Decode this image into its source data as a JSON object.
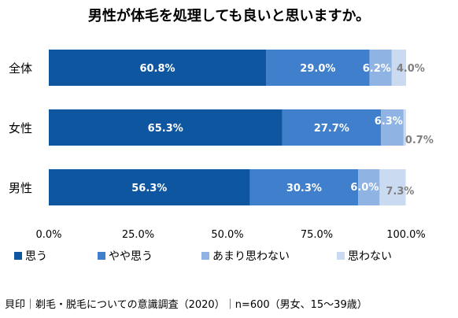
{
  "chart_data": {
    "type": "bar",
    "orientation": "horizontal",
    "stacked": true,
    "percent_stacked": true,
    "title": "男性が体毛を処理しても良いと思いますか。",
    "categories": [
      "全体",
      "女性",
      "男性"
    ],
    "series": [
      {
        "name": "思う",
        "values": [
          60.8,
          65.3,
          56.3
        ],
        "labels": [
          "60.8%",
          "65.3%",
          "56.3%"
        ],
        "color": "#0F56A0",
        "label_color": "#ffffff"
      },
      {
        "name": "やや思う",
        "values": [
          29.0,
          27.7,
          30.3
        ],
        "labels": [
          "29.0%",
          "27.7%",
          "30.3%"
        ],
        "color": "#3F7FCB",
        "label_color": "#ffffff"
      },
      {
        "name": "あまり思わない",
        "values": [
          6.2,
          6.3,
          6.0
        ],
        "labels": [
          "6.2%",
          "6.3%",
          "6.0%"
        ],
        "color": "#8FB3E2",
        "label_color": "#ffffff"
      },
      {
        "name": "思わない",
        "values": [
          4.0,
          0.7,
          7.3
        ],
        "labels": [
          "4.0%",
          "0.7%",
          "7.3%"
        ],
        "color": "#C9DAF1",
        "label_color": "#7f7f7f"
      }
    ],
    "xlim": [
      0,
      100
    ],
    "x_ticks": [
      "0.0%",
      "25.0%",
      "50.0%",
      "75.0%",
      "100.0%"
    ],
    "legend_position": "bottom",
    "grid": false
  },
  "footer": {
    "source": "貝印｜剃毛・脱毛についての意識調査（2020）｜n=600（男女、15〜39歳）"
  }
}
